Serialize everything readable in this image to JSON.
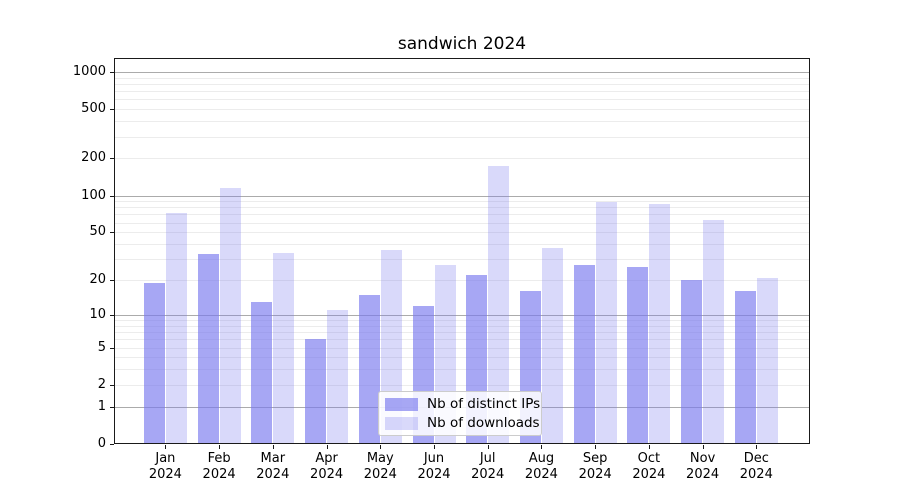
{
  "title": "sandwich 2024",
  "chart_data": {
    "type": "bar",
    "title": "sandwich 2024",
    "categories": [
      "Jan 2024",
      "Feb 2024",
      "Mar 2024",
      "Apr 2024",
      "May 2024",
      "Jun 2024",
      "Jul 2024",
      "Aug 2024",
      "Sep 2024",
      "Oct 2024",
      "Nov 2024",
      "Dec 2024"
    ],
    "series": [
      {
        "name": "Nb of distinct IPs",
        "values": [
          19,
          33,
          13,
          6,
          15,
          12,
          22,
          16,
          27,
          26,
          20,
          16
        ]
      },
      {
        "name": "Nb of downloads",
        "values": [
          72,
          115,
          34,
          11,
          36,
          27,
          175,
          37,
          88,
          85,
          63,
          21
        ]
      }
    ],
    "xlabel": "",
    "ylabel": "",
    "yscale": "log1p",
    "ylim": [
      0,
      1290
    ],
    "yticks": [
      0,
      1,
      2,
      5,
      10,
      20,
      50,
      100,
      200,
      500,
      1000
    ],
    "grid": true,
    "legend_position": "lower center"
  },
  "legend": {
    "items": [
      {
        "label": "Nb of distinct IPs",
        "color": "rgba(120,120,238,0.65)"
      },
      {
        "label": "Nb of downloads",
        "color": "rgba(120,120,238,0.28)"
      }
    ]
  },
  "colors": {
    "bar_distinct_ips": "rgba(120,120,238,0.65)",
    "bar_downloads": "rgba(120,120,238,0.28)",
    "grid_major": "#ababab",
    "grid_minor": "#ececec",
    "spine": "#1a1a1a",
    "background": "#ffffff",
    "text": "#000000"
  }
}
